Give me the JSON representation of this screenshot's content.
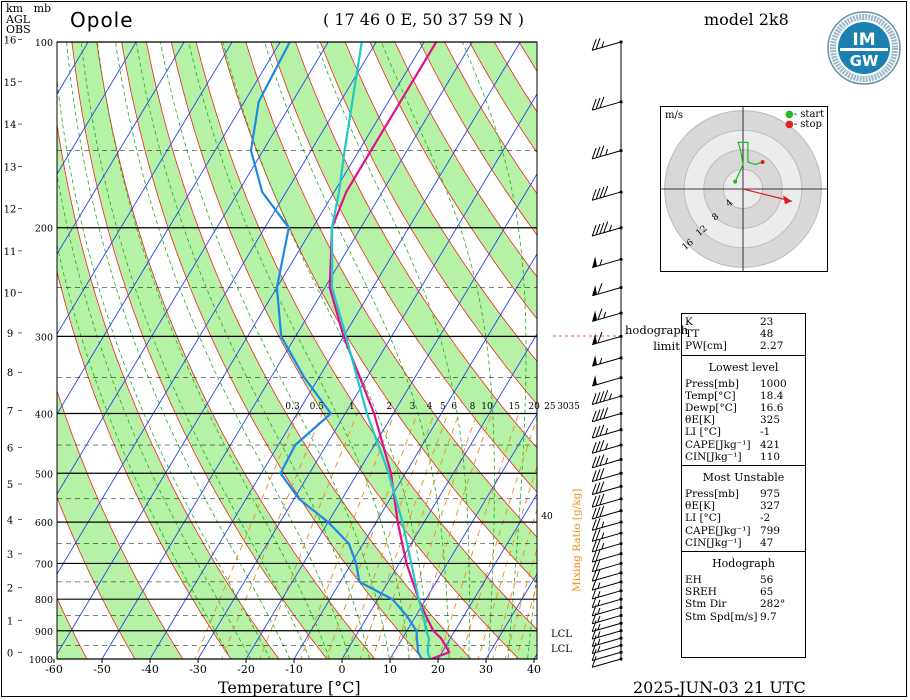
{
  "header": {
    "station": "Opole",
    "coords": "( 17 46  0 E, 50 37 59 N )",
    "model": "model 2k8",
    "unit_km": "km",
    "unit_agl": "AGL",
    "unit_obs": "OBS",
    "unit_mb": "mb"
  },
  "logo": {
    "text_top": "IM",
    "text_bottom": "GW",
    "ring_text": "INSTYTUT METEOROLOGII I GOSPODARKI WODNEJ"
  },
  "footer": {
    "xlabel": "Temperature [°C]",
    "datetime": "2025-JUN-03   21 UTC"
  },
  "chart_data": {
    "type": "line",
    "title": "Opole",
    "xlabel": "Temperature [°C]",
    "ylabel": "mb",
    "x_ticks": [
      -60,
      -50,
      -40,
      -30,
      -20,
      -10,
      0,
      10,
      20,
      30,
      40
    ],
    "pressure_ticks": [
      100,
      200,
      300,
      400,
      500,
      600,
      700,
      800,
      900,
      1000
    ],
    "height_ticks_km": [
      0,
      1,
      2,
      3,
      4,
      5,
      6,
      7,
      8,
      9,
      10,
      11,
      12,
      13,
      14,
      15,
      16
    ],
    "mixing_ratio_labels": [
      "0.3",
      "0.5",
      "1",
      "2",
      "3",
      "4",
      "5",
      "6",
      "8",
      "10",
      "15",
      "20",
      "25",
      "30",
      "35"
    ],
    "mixing_ratio_axis_label": "Mixing Ratio [g/kg]",
    "mixing_ratio_value_40": "40",
    "lcl_label": "LCL",
    "series": [
      {
        "name": "parcel",
        "color": "#e0108f",
        "points": [
          [
            1000,
            18.6
          ],
          [
            975,
            21.5
          ],
          [
            925,
            18.0
          ],
          [
            900,
            15.5
          ],
          [
            850,
            12.0
          ],
          [
            800,
            8.5
          ],
          [
            700,
            1.5
          ],
          [
            600,
            -5.5
          ],
          [
            500,
            -13.0
          ],
          [
            400,
            -24.0
          ],
          [
            300,
            -40.0
          ],
          [
            250,
            -49.0
          ],
          [
            200,
            -56.0
          ],
          [
            175,
            -57.5
          ],
          [
            150,
            -57.5
          ],
          [
            125,
            -57.5
          ],
          [
            100,
            -57.5
          ]
        ]
      },
      {
        "name": "temperature",
        "color": "#20c8c8",
        "points": [
          [
            1000,
            18.4
          ],
          [
            975,
            17.0
          ],
          [
            925,
            15.5
          ],
          [
            900,
            14.0
          ],
          [
            850,
            11.5
          ],
          [
            800,
            8.5
          ],
          [
            700,
            2.5
          ],
          [
            600,
            -4.5
          ],
          [
            500,
            -13.5
          ],
          [
            400,
            -25.5
          ],
          [
            300,
            -39.5
          ],
          [
            250,
            -48.5
          ],
          [
            200,
            -56.0
          ],
          [
            175,
            -59.0
          ],
          [
            150,
            -63.0
          ],
          [
            125,
            -67.5
          ],
          [
            100,
            -73.0
          ]
        ]
      },
      {
        "name": "dewpoint",
        "color": "#1e88e5",
        "points": [
          [
            1000,
            16.6
          ],
          [
            975,
            15.0
          ],
          [
            925,
            13.0
          ],
          [
            900,
            12.0
          ],
          [
            850,
            8.0
          ],
          [
            800,
            3.0
          ],
          [
            750,
            -6.0
          ],
          [
            700,
            -9.0
          ],
          [
            650,
            -13.0
          ],
          [
            600,
            -20.0
          ],
          [
            550,
            -29.0
          ],
          [
            500,
            -36.0
          ],
          [
            450,
            -36.5
          ],
          [
            400,
            -33.0
          ],
          [
            350,
            -43.0
          ],
          [
            300,
            -53.0
          ],
          [
            250,
            -60.0
          ],
          [
            200,
            -65.0
          ],
          [
            175,
            -75.0
          ],
          [
            150,
            -82.5
          ],
          [
            125,
            -87.0
          ],
          [
            100,
            -88.0
          ]
        ]
      }
    ]
  },
  "hodograph": {
    "unit": "m/s",
    "legend_start": "- start",
    "legend_stop": "- stop",
    "ring_labels": [
      "4",
      "8",
      "12",
      "16"
    ],
    "start_color": "#22bb22",
    "stop_color": "#dd2222",
    "points": [
      [
        -1.6,
        1.5
      ],
      [
        0,
        5
      ],
      [
        -0.5,
        8
      ],
      [
        -1.0,
        9.5
      ],
      [
        1.0,
        9.5
      ],
      [
        1.0,
        5.5
      ],
      [
        2.5,
        5
      ],
      [
        4.0,
        5.5
      ]
    ],
    "storm_motion": [
      10,
      -2.5
    ],
    "limit_label_1": "hodograph",
    "limit_label_2": "limit"
  },
  "indices": {
    "top": [
      {
        "k": "K",
        "v": "23"
      },
      {
        "k": "TT",
        "v": "48"
      },
      {
        "k": "PW[cm]",
        "v": "2.27"
      }
    ],
    "lowest": {
      "title": "Lowest level",
      "rows": [
        {
          "k": "Press[mb]",
          "v": "1000"
        },
        {
          "k": "Temp[°C]",
          "v": "18.4"
        },
        {
          "k": "Dewp[°C]",
          "v": "16.6"
        },
        {
          "k": "θE[K]",
          "v": "325"
        },
        {
          "k": "LI [°C]",
          "v": "-1"
        },
        {
          "k": "CAPE[Jkg⁻¹]",
          "v": "421"
        },
        {
          "k": "CIN[Jkg⁻¹]",
          "v": "110"
        }
      ]
    },
    "unstable": {
      "title": "Most Unstable",
      "rows": [
        {
          "k": "Press[mb]",
          "v": "975"
        },
        {
          "k": "θE[K]",
          "v": "327"
        },
        {
          "k": "LI [°C]",
          "v": "-2"
        },
        {
          "k": "CAPE[Jkg⁻¹]",
          "v": "799"
        },
        {
          "k": "CIN[Jkg⁻¹]",
          "v": "47"
        }
      ]
    },
    "hodo": {
      "title": "Hodograph",
      "rows": [
        {
          "k": "EH",
          "v": "56"
        },
        {
          "k": "SREH",
          "v": "65"
        },
        {
          "k": "Stm Dir",
          "v": "282°"
        },
        {
          "k": "Stm Spd[m/s]",
          "v": "9.7"
        }
      ]
    }
  },
  "winds": {
    "levels_mb": [
      1000,
      975,
      950,
      925,
      900,
      875,
      850,
      825,
      800,
      775,
      750,
      725,
      700,
      675,
      650,
      625,
      600,
      575,
      550,
      525,
      500,
      475,
      450,
      425,
      400,
      375,
      350,
      325,
      300,
      275,
      250,
      225,
      200,
      175,
      150,
      125,
      100
    ],
    "speed_kt": [
      10,
      12,
      15,
      17,
      18,
      18,
      17,
      16,
      16,
      17,
      18,
      20,
      22,
      23,
      25,
      27,
      28,
      30,
      30,
      32,
      33,
      35,
      36,
      38,
      40,
      45,
      50,
      55,
      60,
      65,
      60,
      55,
      45,
      40,
      35,
      30,
      25
    ]
  },
  "colors": {
    "dry_adiabat_band": "#b6f2a6",
    "isotherm": "#2244ee",
    "dry_adiabat": "#ee2222",
    "moist_adiabat": "#22aa22",
    "mixing_ratio": "#ee8c1c",
    "isobar": "#000000"
  }
}
